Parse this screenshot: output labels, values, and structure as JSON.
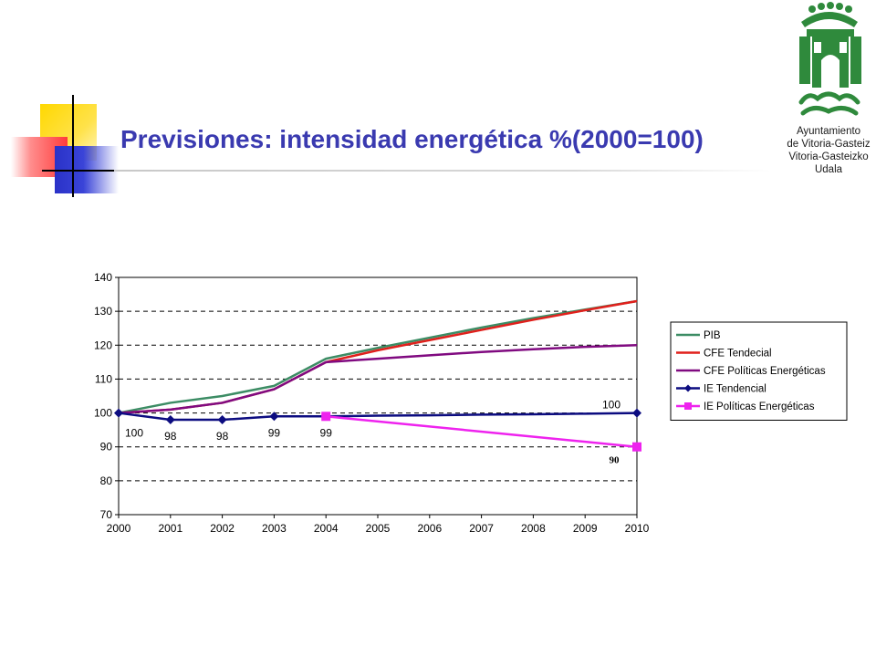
{
  "slide": {
    "title": "Previsiones: intensidad energética %(2000=100)"
  },
  "logo": {
    "caption_lines": [
      "Ayuntamiento",
      "de Vitoria-Gasteiz",
      "Vitoria-Gasteizko",
      "Udala"
    ],
    "icon": "city-coat-of-arms-icon",
    "color": "#2f8a3c"
  },
  "chart_data": {
    "type": "line",
    "title": "",
    "xlabel": "",
    "ylabel": "",
    "categories": [
      "2000",
      "2001",
      "2002",
      "2003",
      "2004",
      "2005",
      "2006",
      "2007",
      "2008",
      "2009",
      "2010"
    ],
    "ylim": [
      70,
      140
    ],
    "y_ticks": [
      "70",
      "80",
      "90",
      "100",
      "110",
      "120",
      "130",
      "140"
    ],
    "grid": "horizontal-dashed",
    "legend_position": "right",
    "series": [
      {
        "name": "PIB",
        "color": "#3c8c64",
        "marker": "none",
        "values": [
          100,
          103,
          105,
          108,
          116,
          119.2,
          122.2,
          125.2,
          128,
          130.5,
          133
        ]
      },
      {
        "name": "CFE Tendecial",
        "color": "#e0201c",
        "marker": "none",
        "values": [
          100,
          101,
          103,
          107,
          115,
          118.5,
          121.5,
          124.5,
          127.5,
          130.3,
          133
        ]
      },
      {
        "name": "CFE Políticas Energéticas",
        "color": "#800a80",
        "marker": "none",
        "values": [
          100,
          101,
          103,
          107,
          115,
          116,
          117,
          118,
          118.8,
          119.5,
          120
        ]
      },
      {
        "name": "IE Tendencial",
        "color": "#0c0c80",
        "marker": "diamond",
        "values": [
          100,
          98,
          98,
          99,
          99,
          99.2,
          99.3,
          99.5,
          99.6,
          99.8,
          100
        ],
        "marker_points": [
          0,
          1,
          2,
          3,
          10
        ]
      },
      {
        "name": "IE Políticas Energéticas",
        "color": "#ee22ee",
        "marker": "square",
        "values": [
          null,
          null,
          null,
          null,
          99,
          null,
          null,
          null,
          null,
          null,
          90
        ],
        "marker_points": [
          4,
          10
        ]
      }
    ],
    "data_labels": [
      {
        "text": "100",
        "x": "2000",
        "y": 100
      },
      {
        "text": "98",
        "x": "2001",
        "y": 98
      },
      {
        "text": "98",
        "x": "2002",
        "y": 98
      },
      {
        "text": "99",
        "x": "2003",
        "y": 99
      },
      {
        "text": "99",
        "x": "2004",
        "y": 99
      },
      {
        "text": "100",
        "x": "2010",
        "y": 100
      },
      {
        "text": "90",
        "x": "2010",
        "y": 90
      }
    ]
  }
}
